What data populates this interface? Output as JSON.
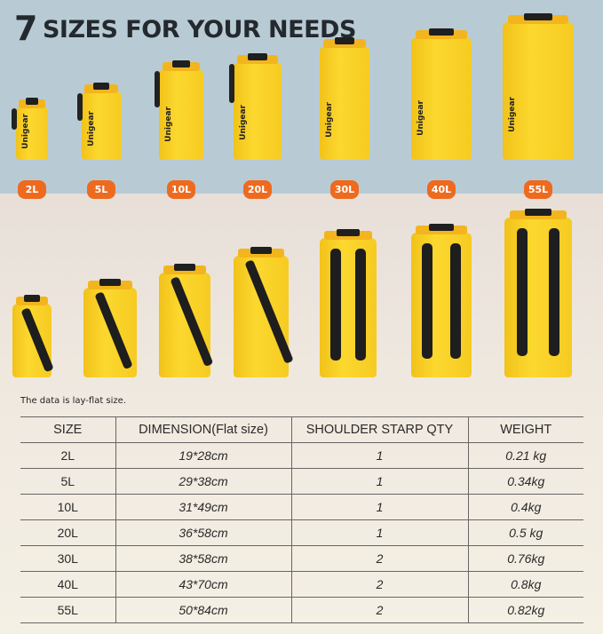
{
  "title": {
    "number": "7",
    "text": "SIZES FOR YOUR NEEDS"
  },
  "brand": "Unigear",
  "sizes": [
    "2L",
    "5L",
    "10L",
    "20L",
    "30L",
    "40L",
    "55L"
  ],
  "note": "The data is lay-flat size.",
  "colors": {
    "bag": "#fcd82e",
    "badge": "#ee6a1e",
    "sky": "#b8cbd4"
  },
  "table": {
    "headers": [
      "SIZE",
      "DIMENSION(Flat size)",
      "SHOULDER STARP QTY",
      "WEIGHT"
    ],
    "rows": [
      [
        "2L",
        "19*28cm",
        "1",
        "0.21 kg"
      ],
      [
        "5L",
        "29*38cm",
        "1",
        "0.34kg"
      ],
      [
        "10L",
        "31*49cm",
        "1",
        "0.4kg"
      ],
      [
        "20L",
        "36*58cm",
        "1",
        "0.5 kg"
      ],
      [
        "30L",
        "38*58cm",
        "2",
        "0.76kg"
      ],
      [
        "40L",
        "43*70cm",
        "2",
        "0.8kg"
      ],
      [
        "55L",
        "50*84cm",
        "2",
        "0.82kg"
      ]
    ]
  }
}
